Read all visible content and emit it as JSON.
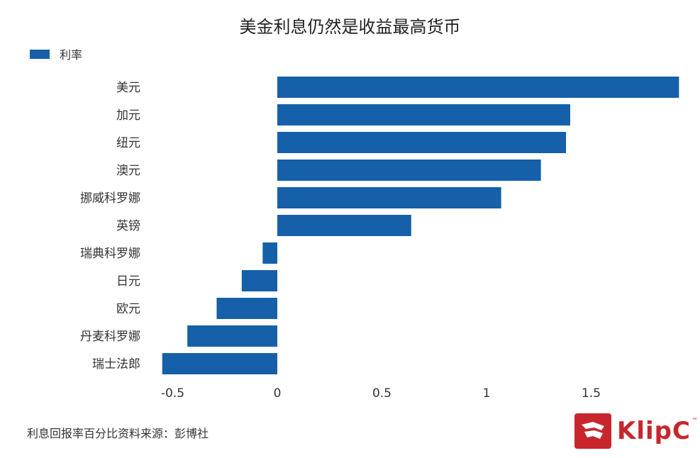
{
  "chart_data": {
    "type": "bar",
    "orientation": "horizontal",
    "title": "美金利息仍然是收益最高货币",
    "categories": [
      "美元",
      "加元",
      "纽元",
      "澳元",
      "挪威科罗娜",
      "英镑",
      "瑞典科罗娜",
      "日元",
      "欧元",
      "丹麦科罗娜",
      "瑞士法郎"
    ],
    "series": [
      {
        "name": "利率",
        "color": "#1560a8",
        "values": [
          1.92,
          1.4,
          1.38,
          1.26,
          1.07,
          0.64,
          -0.07,
          -0.17,
          -0.29,
          -0.43,
          -0.55
        ]
      }
    ],
    "x_ticks": [
      "-0.5",
      "0",
      "0.5",
      "1",
      "1.5"
    ],
    "x_tick_values": [
      -0.5,
      0,
      0.5,
      1,
      1.5
    ],
    "xlim": [
      -0.6,
      1.92
    ],
    "grid": false,
    "legend_position": "top-left"
  },
  "footer": {
    "note": "利息回报率百分比资料来源：彭博社"
  },
  "logo": {
    "text": "KlipC",
    "trademark": "™",
    "color": "#c8262d"
  }
}
